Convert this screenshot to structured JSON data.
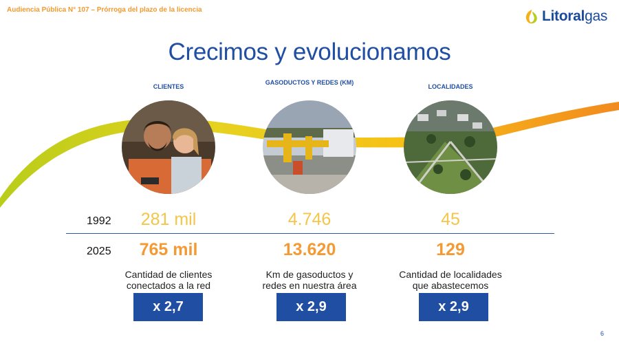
{
  "header": {
    "label": "Audiencia Pública N° 107 – Prórroga del plazo de la licencia"
  },
  "logo": {
    "text_bold": "Litoral",
    "text_light": "gas"
  },
  "title": "Crecimos y evolucionamos",
  "columns": [
    {
      "heading": "CLIENTES",
      "photo": "family-photo",
      "value_1992": "281 mil",
      "value_2025": "765 mil",
      "description_line1": "Cantidad de clientes",
      "description_line2": "conectados a la red",
      "multiplier": "x 2,7"
    },
    {
      "heading": "GASODUCTOS Y REDES (KM)",
      "photo": "gas-pipeline-photo",
      "value_1992": "4.746",
      "value_2025": "13.620",
      "description_line1": "Km de gasoductos y",
      "description_line2": "redes en nuestra área",
      "multiplier": "x 2,9"
    },
    {
      "heading": "LOCALIDADES",
      "photo": "aerial-town-photo",
      "value_1992": "45",
      "value_2025": "129",
      "description_line1": "Cantidad de localidades",
      "description_line2": "que abastecemos",
      "multiplier": "x 2,9"
    }
  ],
  "years": {
    "first": "1992",
    "second": "2025"
  },
  "page_number": "6",
  "colors": {
    "brand_blue": "#1f4ea3",
    "orange": "#f39a35",
    "yellow": "#f3c649",
    "green": "#b7cc1f"
  }
}
